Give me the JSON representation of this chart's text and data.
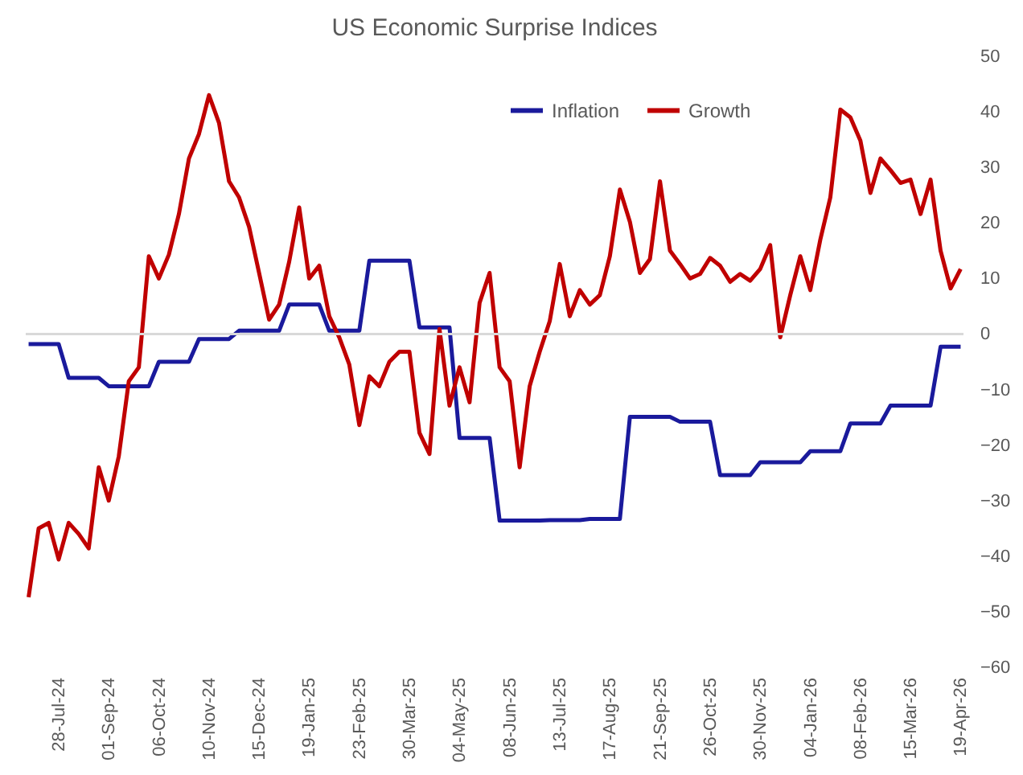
{
  "chart_data": {
    "type": "line",
    "title": "US Economic Surprise Indices",
    "x": [
      "2024-07-07",
      "2024-07-14",
      "2024-07-21",
      "2024-07-28",
      "2024-08-04",
      "2024-08-11",
      "2024-08-18",
      "2024-08-25",
      "2024-09-01",
      "2024-09-08",
      "2024-09-15",
      "2024-09-22",
      "2024-09-29",
      "2024-10-06",
      "2024-10-13",
      "2024-10-20",
      "2024-10-27",
      "2024-11-03",
      "2024-11-10",
      "2024-11-17",
      "2024-11-24",
      "2024-12-01",
      "2024-12-08",
      "2024-12-15",
      "2024-12-22",
      "2024-12-29",
      "2025-01-05",
      "2025-01-12",
      "2025-01-19",
      "2025-01-26",
      "2025-02-02",
      "2025-02-09",
      "2025-02-16",
      "2025-02-23",
      "2025-03-02",
      "2025-03-09",
      "2025-03-16",
      "2025-03-23",
      "2025-03-30",
      "2025-04-06",
      "2025-04-13",
      "2025-04-20",
      "2025-04-27",
      "2025-05-04",
      "2025-05-11",
      "2025-05-18",
      "2025-05-25",
      "2025-06-01",
      "2025-06-08",
      "2025-06-15",
      "2025-06-22",
      "2025-06-29",
      "2025-07-06",
      "2025-07-13",
      "2025-07-20",
      "2025-07-27",
      "2025-08-03",
      "2025-08-10",
      "2025-08-17",
      "2025-08-24",
      "2025-08-31",
      "2025-09-07",
      "2025-09-14",
      "2025-09-21",
      "2025-09-28",
      "2025-10-05",
      "2025-10-12",
      "2025-10-19",
      "2025-10-26",
      "2025-11-02",
      "2025-11-09",
      "2025-11-16",
      "2025-11-23",
      "2025-11-30",
      "2025-12-07",
      "2025-12-14",
      "2025-12-21",
      "2025-12-28",
      "2026-01-04",
      "2026-01-11",
      "2026-01-18",
      "2026-01-25",
      "2026-02-01",
      "2026-02-08",
      "2026-02-15",
      "2026-02-22",
      "2026-03-01",
      "2026-03-08",
      "2026-03-15",
      "2026-03-22",
      "2026-03-29",
      "2026-04-05",
      "2026-04-12",
      "2026-04-19"
    ],
    "series": [
      {
        "name": "Inflation",
        "color": "#1a1a9c",
        "values": [
          -1.8,
          -1.8,
          -1.8,
          -1.8,
          -7.9,
          -7.9,
          -7.9,
          -7.9,
          -9.4,
          -9.4,
          -9.4,
          -9.4,
          -9.4,
          -5,
          -5,
          -5,
          -5,
          -0.9,
          -0.9,
          -0.9,
          -0.9,
          0.6,
          0.6,
          0.6,
          0.6,
          0.6,
          5.3,
          5.3,
          5.3,
          5.3,
          0.6,
          0.6,
          0.6,
          0.6,
          13.2,
          13.2,
          13.2,
          13.2,
          13.2,
          1.2,
          1.2,
          1.2,
          1.2,
          -18.7,
          -18.7,
          -18.7,
          -18.7,
          -33.6,
          -33.6,
          -33.6,
          -33.6,
          -33.6,
          -33.5,
          -33.5,
          -33.5,
          -33.5,
          -33.3,
          -33.3,
          -33.3,
          -33.3,
          -14.9,
          -14.9,
          -14.9,
          -14.9,
          -14.9,
          -15.8,
          -15.8,
          -15.8,
          -15.8,
          -25.4,
          -25.4,
          -25.4,
          -25.4,
          -23.1,
          -23.1,
          -23.1,
          -23.1,
          -23.1,
          -21.1,
          -21.1,
          -21.1,
          -21.1,
          -16.1,
          -16.1,
          -16.1,
          -16.1,
          -12.9,
          -12.9,
          -12.9,
          -12.9,
          -12.9,
          -2.3,
          -2.3,
          -2.3
        ]
      },
      {
        "name": "Growth",
        "color": "#c00000",
        "values": [
          -47.4,
          -35,
          -34,
          -40.6,
          -34,
          -36,
          -38.6,
          -24,
          -30,
          -22,
          -8.5,
          -6,
          14,
          10,
          14.3,
          21.6,
          31.6,
          36,
          43,
          38,
          27.5,
          24.6,
          19.3,
          11,
          2.6,
          5.3,
          13,
          22.8,
          10,
          12.3,
          3.2,
          -0.6,
          -5.5,
          -16.4,
          -7.6,
          -9.4,
          -5,
          -3.2,
          -3.2,
          -17.8,
          -21.6,
          0.9,
          -12.9,
          -6,
          -12.3,
          5.6,
          11,
          -6,
          -8.5,
          -24,
          -9.4,
          -3.2,
          2.3,
          12.6,
          3.2,
          7.9,
          5.3,
          7,
          14,
          26,
          20.2,
          11,
          13.5,
          27.5,
          15,
          12.6,
          10,
          10.8,
          13.7,
          12.3,
          9.4,
          10.8,
          9.6,
          11.7,
          16,
          -0.6,
          7,
          14,
          7.9,
          17,
          24.6,
          40.4,
          39,
          34.8,
          25.4,
          31.6,
          29.5,
          27.2,
          27.8,
          21.6,
          27.8,
          15,
          8.2,
          11.7
        ]
      }
    ],
    "xlim": [
      "2024-07-05",
      "2026-04-21"
    ],
    "xticks": [
      {
        "value": "2024-07-28",
        "label": "28-Jul-24"
      },
      {
        "value": "2024-09-01",
        "label": "01-Sep-24"
      },
      {
        "value": "2024-10-06",
        "label": "06-Oct-24"
      },
      {
        "value": "2024-11-10",
        "label": "10-Nov-24"
      },
      {
        "value": "2024-12-15",
        "label": "15-Dec-24"
      },
      {
        "value": "2025-01-19",
        "label": "19-Jan-25"
      },
      {
        "value": "2025-02-23",
        "label": "23-Feb-25"
      },
      {
        "value": "2025-03-30",
        "label": "30-Mar-25"
      },
      {
        "value": "2025-05-04",
        "label": "04-May-25"
      },
      {
        "value": "2025-06-08",
        "label": "08-Jun-25"
      },
      {
        "value": "2025-07-13",
        "label": "13-Jul-25"
      },
      {
        "value": "2025-08-17",
        "label": "17-Aug-25"
      },
      {
        "value": "2025-09-21",
        "label": "21-Sep-25"
      },
      {
        "value": "2025-10-26",
        "label": "26-Oct-25"
      },
      {
        "value": "2025-11-30",
        "label": "30-Nov-25"
      },
      {
        "value": "2026-01-04",
        "label": "04-Jan-26"
      },
      {
        "value": "2026-02-08",
        "label": "08-Feb-26"
      },
      {
        "value": "2026-03-15",
        "label": "15-Mar-26"
      },
      {
        "value": "2026-04-19",
        "label": "19-Apr-26"
      }
    ],
    "ylim": [
      -60,
      50
    ],
    "yticks": [
      -60,
      -50,
      -40,
      -30,
      -20,
      -10,
      0,
      10,
      20,
      30,
      40,
      50
    ],
    "ref_lines": [
      {
        "axis": "y",
        "value": 0,
        "color": "#d9d9d9"
      }
    ],
    "grid": false,
    "legend": "top",
    "line_style": "solid",
    "marker": "none"
  }
}
